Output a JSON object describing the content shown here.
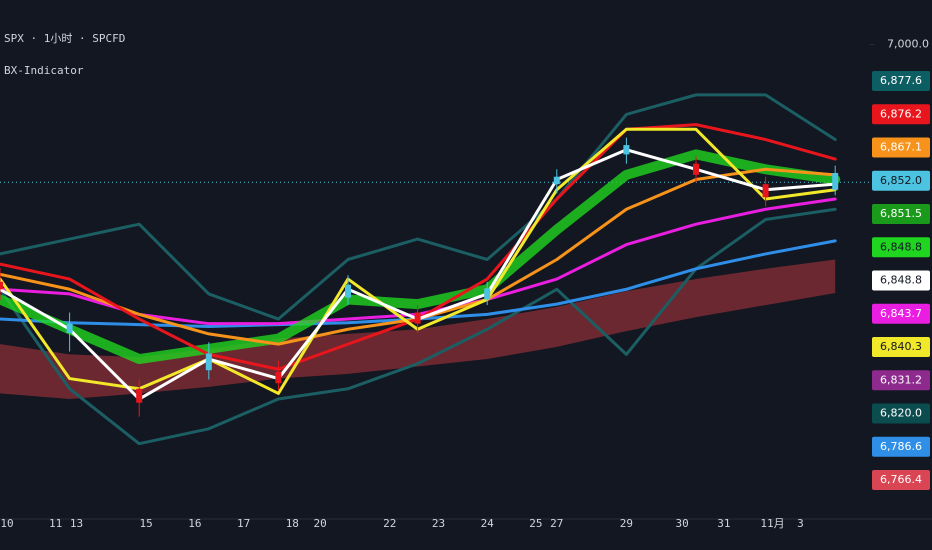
{
  "chart_data": {
    "type": "line",
    "title": "SPX · 1小时 · SPCFD",
    "subtitle": "BX-Indicator",
    "x": [
      0,
      10,
      20,
      30,
      40,
      50,
      60,
      70,
      80,
      90,
      100,
      110,
      120
    ],
    "xlim": [
      0,
      125
    ],
    "xticks": [
      {
        "value": 1,
        "label": "10"
      },
      {
        "value": 8,
        "label": "11"
      },
      {
        "value": 11,
        "label": "13"
      },
      {
        "value": 21,
        "label": "15"
      },
      {
        "value": 28,
        "label": "16"
      },
      {
        "value": 35,
        "label": "17"
      },
      {
        "value": 42,
        "label": "18"
      },
      {
        "value": 46,
        "label": "20"
      },
      {
        "value": 56,
        "label": "22"
      },
      {
        "value": 63,
        "label": "23"
      },
      {
        "value": 70,
        "label": "24"
      },
      {
        "value": 77,
        "label": "25"
      },
      {
        "value": 80,
        "label": "27"
      },
      {
        "value": 90,
        "label": "29"
      },
      {
        "value": 98,
        "label": "30"
      },
      {
        "value": 104,
        "label": "31"
      },
      {
        "value": 111,
        "label": "11月"
      },
      {
        "value": 115,
        "label": "3"
      }
    ],
    "ylim": [
      6490,
      7048
    ],
    "yticks": [
      {
        "value": 7000,
        "label": "7,000.0"
      }
    ],
    "last_price": 6852,
    "series": [
      {
        "color": "#1b5e63",
        "values": [
          6775,
          6791,
          6807,
          6732,
          6705,
          6769,
          6791,
          6769,
          6834,
          6925,
          6946,
          6946,
          6898
        ]
      },
      {
        "color": "#1b5e63",
        "values": [
          6737,
          6630,
          6571,
          6587,
          6619,
          6630,
          6657,
          6694,
          6737,
          6667,
          6759,
          6812,
          6823
        ]
      },
      {
        "color": "#2f8fe8",
        "values": [
          6705,
          6701,
          6699,
          6697,
          6699,
          6701,
          6705,
          6710,
          6721,
          6737,
          6759,
          6775,
          6789
        ]
      },
      {
        "color": "#e91ee0",
        "values": [
          6737,
          6732,
          6710,
          6700,
          6700,
          6705,
          6710,
          6726,
          6748,
          6785,
          6807,
          6823,
          6834
        ]
      },
      {
        "color": "#1fd51f",
        "values": [
          6726,
          6694,
          6662,
          6673,
          6684,
          6726,
          6721,
          6737,
          6801,
          6860,
          6882,
          6866,
          6855
        ]
      },
      {
        "color": "#f7931a",
        "values": [
          6753,
          6737,
          6710,
          6689,
          6678,
          6694,
          6705,
          6726,
          6769,
          6823,
          6855,
          6866,
          6860
        ]
      },
      {
        "color": "#e8161c",
        "values": [
          6764,
          6748,
          6705,
          6667,
          6651,
          6678,
          6705,
          6748,
          6834,
          6909,
          6914,
          6898,
          6877
        ]
      },
      {
        "color": "#f2e82a",
        "values": [
          6748,
          6641,
          6630,
          6662,
          6625,
          6748,
          6694,
          6726,
          6844,
          6909,
          6909,
          6834,
          6844
        ]
      },
      {
        "color": "#ffffff",
        "values": [
          6737,
          6694,
          6619,
          6662,
          6641,
          6737,
          6705,
          6732,
          6855,
          6887,
          6866,
          6844,
          6850
        ]
      }
    ],
    "band": {
      "color": "#8b2f36",
      "upper": [
        6678,
        6667,
        6664,
        6673,
        6684,
        6689,
        6694,
        6705,
        6718,
        6735,
        6748,
        6759,
        6769
      ],
      "lower": [
        6625,
        6619,
        6625,
        6632,
        6641,
        6646,
        6654,
        6662,
        6675,
        6692,
        6707,
        6720,
        6733
      ]
    },
    "candles": [
      {
        "x": 0,
        "open": 6745,
        "high": 6760,
        "low": 6725,
        "close": 6737
      },
      {
        "x": 10,
        "open": 6690,
        "high": 6712,
        "low": 6670,
        "close": 6700
      },
      {
        "x": 20,
        "open": 6630,
        "high": 6640,
        "low": 6600,
        "close": 6615
      },
      {
        "x": 30,
        "open": 6650,
        "high": 6680,
        "low": 6640,
        "close": 6668
      },
      {
        "x": 40,
        "open": 6648,
        "high": 6660,
        "low": 6628,
        "close": 6636
      },
      {
        "x": 50,
        "open": 6728,
        "high": 6752,
        "low": 6720,
        "close": 6742
      },
      {
        "x": 60,
        "open": 6712,
        "high": 6720,
        "low": 6690,
        "close": 6700
      },
      {
        "x": 70,
        "open": 6726,
        "high": 6745,
        "low": 6720,
        "close": 6738
      },
      {
        "x": 80,
        "open": 6850,
        "high": 6866,
        "low": 6840,
        "close": 6858
      },
      {
        "x": 90,
        "open": 6882,
        "high": 6900,
        "low": 6872,
        "close": 6892
      },
      {
        "x": 100,
        "open": 6872,
        "high": 6880,
        "low": 6852,
        "close": 6860
      },
      {
        "x": 110,
        "open": 6850,
        "high": 6858,
        "low": 6826,
        "close": 6836
      },
      {
        "x": 120,
        "open": 6844,
        "high": 6870,
        "low": 6838,
        "close": 6862
      }
    ],
    "price_labels": [
      {
        "value": 6877.6,
        "label": "6,877.6",
        "color": "#0d5e63"
      },
      {
        "value": 6876.2,
        "label": "6,876.2",
        "color": "#e8161c"
      },
      {
        "value": 6867.1,
        "label": "6,867.1",
        "color": "#f7931a"
      },
      {
        "value": 6852.0,
        "label": "6,852.0",
        "color": "#4cc3e0"
      },
      {
        "value": 6851.5,
        "label": "6,851.5",
        "color": "#1a9a1a"
      },
      {
        "value": 6848.8,
        "label": "6,848.8",
        "color": "#1fd51f"
      },
      {
        "value": 6848.8,
        "label": "6,848.8",
        "color": "#ffffff"
      },
      {
        "value": 6843.7,
        "label": "6,843.7",
        "color": "#e91ee0"
      },
      {
        "value": 6840.3,
        "label": "6,840.3",
        "color": "#f2e82a"
      },
      {
        "value": 6831.2,
        "label": "6,831.2",
        "color": "#8e2a8e"
      },
      {
        "value": 6820.0,
        "label": "6,820.0",
        "color": "#0b4d4f"
      },
      {
        "value": 6786.6,
        "label": "6,786.6",
        "color": "#2f8fe8"
      },
      {
        "value": 6766.4,
        "label": "6,766.4",
        "color": "#d94552"
      }
    ]
  }
}
